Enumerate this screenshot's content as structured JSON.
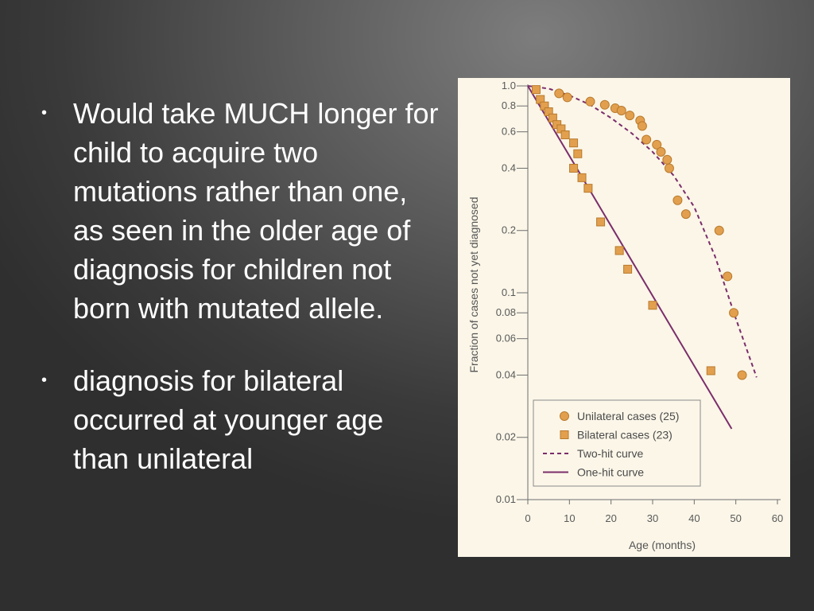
{
  "slide": {
    "bullets": [
      "Would take MUCH longer for child to acquire two mutations rather than one, as seen in the older age of diagnosis for children not born with mutated allele.",
      "diagnosis for bilateral occurred at younger age than unilateral"
    ],
    "bullet_symbol": "•"
  },
  "chart_data": {
    "type": "scatter",
    "xlabel": "Age (months)",
    "ylabel": "Fraction of cases not yet diagnosed",
    "xlim": [
      0,
      60
    ],
    "ylim": [
      0.01,
      1.0
    ],
    "y_scale": "log",
    "x_ticks": [
      0,
      10,
      20,
      30,
      40,
      50,
      60
    ],
    "x_tick_labels": [
      "0",
      "10",
      "20",
      "30",
      "40",
      "50",
      "60"
    ],
    "y_ticks": [
      1.0,
      0.8,
      0.6,
      0.4,
      0.2,
      0.1,
      0.08,
      0.06,
      0.04,
      0.02,
      0.01
    ],
    "y_tick_labels": [
      "1.0",
      "0.8",
      "0.6",
      "0.4",
      "0.2",
      "0.1",
      "0.08",
      "0.06",
      "0.04",
      "0.02",
      "0.01"
    ],
    "grid": false,
    "legend_position": "bottom-right",
    "series": [
      {
        "name": "Unilateral cases (25)",
        "kind": "points",
        "marker": "circle",
        "color": "#e2a04f",
        "stroke": "#b97a2c",
        "points": [
          [
            7.5,
            0.92
          ],
          [
            9.5,
            0.88
          ],
          [
            15,
            0.84
          ],
          [
            18.5,
            0.81
          ],
          [
            21,
            0.78
          ],
          [
            22.5,
            0.76
          ],
          [
            24.5,
            0.72
          ],
          [
            27,
            0.68
          ],
          [
            27.5,
            0.64
          ],
          [
            28.5,
            0.55
          ],
          [
            31,
            0.52
          ],
          [
            32,
            0.48
          ],
          [
            33.5,
            0.44
          ],
          [
            34,
            0.4
          ],
          [
            36,
            0.28
          ],
          [
            38,
            0.24
          ],
          [
            46,
            0.2
          ],
          [
            48,
            0.12
          ],
          [
            49.5,
            0.08
          ],
          [
            51.5,
            0.04
          ]
        ]
      },
      {
        "name": "Bilateral cases (23)",
        "kind": "points",
        "marker": "square",
        "color": "#e2a04f",
        "stroke": "#b97a2c",
        "points": [
          [
            2,
            0.96
          ],
          [
            3,
            0.86
          ],
          [
            4,
            0.8
          ],
          [
            5,
            0.75
          ],
          [
            6,
            0.7
          ],
          [
            7,
            0.65
          ],
          [
            8,
            0.62
          ],
          [
            9,
            0.58
          ],
          [
            11,
            0.53
          ],
          [
            12,
            0.47
          ],
          [
            11,
            0.4
          ],
          [
            13,
            0.36
          ],
          [
            14.5,
            0.32
          ],
          [
            17.5,
            0.22
          ],
          [
            22,
            0.16
          ],
          [
            24,
            0.13
          ],
          [
            30,
            0.087
          ],
          [
            44,
            0.042
          ]
        ]
      },
      {
        "name": "Two-hit curve",
        "kind": "line",
        "dash": "dashed",
        "color": "#7b2d6b",
        "points": [
          [
            0,
            1.0
          ],
          [
            5,
            0.97
          ],
          [
            10,
            0.9
          ],
          [
            15,
            0.81
          ],
          [
            20,
            0.7
          ],
          [
            25,
            0.59
          ],
          [
            30,
            0.48
          ],
          [
            35,
            0.37
          ],
          [
            40,
            0.26
          ],
          [
            45,
            0.15
          ],
          [
            50,
            0.075
          ],
          [
            55,
            0.039
          ]
        ]
      },
      {
        "name": "One-hit curve",
        "kind": "line",
        "dash": "solid",
        "color": "#7b2d6b",
        "points": [
          [
            0,
            1.0
          ],
          [
            49,
            0.022
          ]
        ]
      }
    ]
  }
}
